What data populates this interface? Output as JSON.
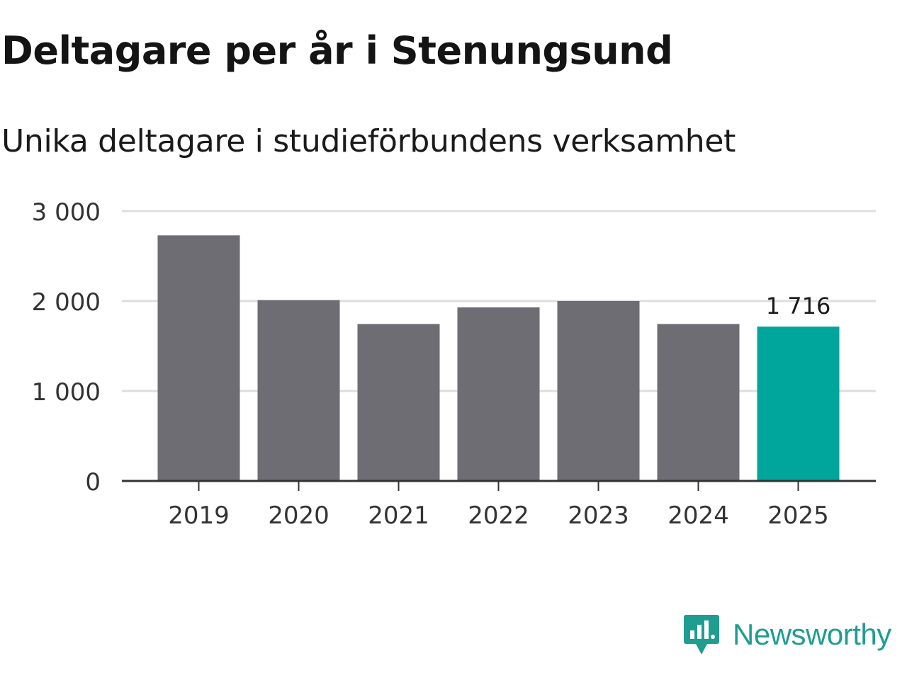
{
  "chart_data": {
    "type": "bar",
    "title": "Deltagare per år i Stenungsund",
    "subtitle": "Unika deltagare i studieförbundens verksamhet",
    "xlabel": "",
    "ylabel": "",
    "categories": [
      "2019",
      "2020",
      "2021",
      "2022",
      "2023",
      "2024",
      "2025"
    ],
    "values": [
      2730,
      2010,
      1745,
      1930,
      2000,
      1745,
      1716
    ],
    "ylim": [
      0,
      3000
    ],
    "yticks": [
      0,
      1000,
      2000,
      3000
    ],
    "ytick_labels": [
      "0",
      "1 000",
      "2 000",
      "3 000"
    ],
    "data_labels": [
      {
        "category": "2025",
        "text": "1 716"
      }
    ],
    "highlight_category": "2025",
    "grid": true,
    "colors": {
      "bar": "#6e6d73",
      "highlight": "#00a59b",
      "grid": "#dedede",
      "axis": "#333333"
    }
  },
  "brand": {
    "name": "Newsworthy",
    "icon": "newsworthy-logo-icon",
    "color": "#1f9d90"
  }
}
